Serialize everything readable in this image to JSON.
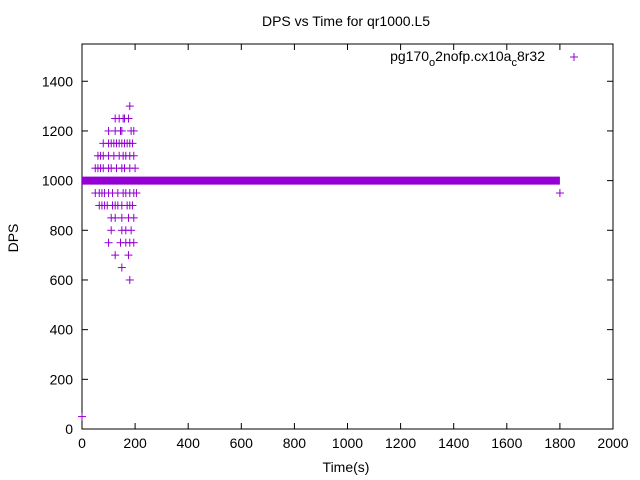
{
  "chart_data": {
    "type": "scatter",
    "title": "DPS vs Time for qr1000.L5",
    "xlabel": "Time(s)",
    "ylabel": "DPS",
    "xlim": [
      0,
      2000
    ],
    "ylim": [
      0,
      1550
    ],
    "x_ticks": [
      0,
      200,
      400,
      600,
      800,
      1000,
      1200,
      1400,
      1600,
      1800,
      2000
    ],
    "y_ticks": [
      0,
      200,
      400,
      600,
      800,
      1000,
      1200,
      1400
    ],
    "grid": false,
    "legend_position": "top-right",
    "marker": "plus",
    "series": [
      {
        "name": "pg170_o2nofp.cx10a_c8r32",
        "legend_text": "pg170",
        "legend_sub1": "o",
        "legend_mid": "2nofp.cx10a",
        "legend_sub2": "c",
        "legend_end": "8r32",
        "color": "#9400d3",
        "baseline": {
          "y": 1000,
          "x_start": 0,
          "x_end": 1800
        },
        "points": [
          [
            0,
            50
          ],
          [
            1800,
            950
          ],
          [
            180,
            1300
          ],
          [
            125,
            1250
          ],
          [
            140,
            1250
          ],
          [
            155,
            1250
          ],
          [
            160,
            1250
          ],
          [
            175,
            1250
          ],
          [
            100,
            1200
          ],
          [
            125,
            1200
          ],
          [
            145,
            1200
          ],
          [
            150,
            1200
          ],
          [
            185,
            1200
          ],
          [
            195,
            1200
          ],
          [
            80,
            1150
          ],
          [
            100,
            1150
          ],
          [
            110,
            1150
          ],
          [
            120,
            1150
          ],
          [
            130,
            1150
          ],
          [
            140,
            1150
          ],
          [
            150,
            1150
          ],
          [
            160,
            1150
          ],
          [
            170,
            1150
          ],
          [
            180,
            1150
          ],
          [
            190,
            1150
          ],
          [
            60,
            1100
          ],
          [
            70,
            1100
          ],
          [
            80,
            1100
          ],
          [
            100,
            1100
          ],
          [
            120,
            1100
          ],
          [
            140,
            1100
          ],
          [
            155,
            1100
          ],
          [
            165,
            1100
          ],
          [
            180,
            1100
          ],
          [
            195,
            1100
          ],
          [
            50,
            1050
          ],
          [
            60,
            1050
          ],
          [
            70,
            1050
          ],
          [
            80,
            1050
          ],
          [
            100,
            1050
          ],
          [
            110,
            1050
          ],
          [
            130,
            1050
          ],
          [
            150,
            1050
          ],
          [
            160,
            1050
          ],
          [
            180,
            1050
          ],
          [
            200,
            1050
          ],
          [
            50,
            950
          ],
          [
            65,
            950
          ],
          [
            75,
            950
          ],
          [
            85,
            950
          ],
          [
            100,
            950
          ],
          [
            115,
            950
          ],
          [
            135,
            950
          ],
          [
            155,
            950
          ],
          [
            165,
            950
          ],
          [
            180,
            950
          ],
          [
            195,
            950
          ],
          [
            205,
            950
          ],
          [
            65,
            900
          ],
          [
            75,
            900
          ],
          [
            85,
            900
          ],
          [
            95,
            900
          ],
          [
            115,
            900
          ],
          [
            125,
            900
          ],
          [
            135,
            900
          ],
          [
            150,
            900
          ],
          [
            170,
            900
          ],
          [
            180,
            900
          ],
          [
            190,
            900
          ],
          [
            110,
            850
          ],
          [
            125,
            850
          ],
          [
            150,
            850
          ],
          [
            175,
            850
          ],
          [
            195,
            850
          ],
          [
            110,
            800
          ],
          [
            150,
            800
          ],
          [
            165,
            800
          ],
          [
            185,
            800
          ],
          [
            100,
            750
          ],
          [
            145,
            750
          ],
          [
            165,
            750
          ],
          [
            180,
            750
          ],
          [
            195,
            750
          ],
          [
            125,
            700
          ],
          [
            175,
            700
          ],
          [
            150,
            650
          ],
          [
            180,
            600
          ]
        ]
      }
    ]
  }
}
